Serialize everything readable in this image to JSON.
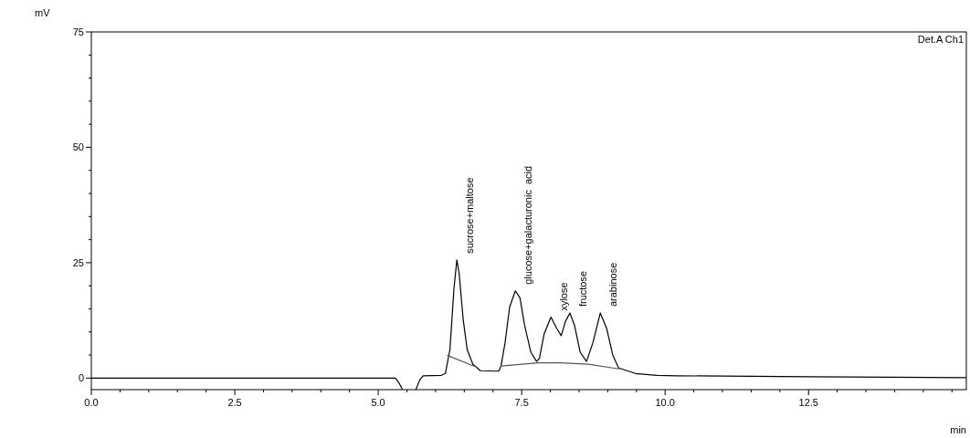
{
  "chart_data": {
    "type": "line",
    "xlabel": "min",
    "ylabel": "mV",
    "xlim": [
      0,
      15.25
    ],
    "ylim": [
      -2.5,
      75
    ],
    "xticks": [
      {
        "value": 0,
        "label": "0.0"
      },
      {
        "value": 0.5,
        "label": null
      },
      {
        "value": 1,
        "label": null
      },
      {
        "value": 1.5,
        "label": null
      },
      {
        "value": 2,
        "label": null
      },
      {
        "value": 2.5,
        "label": "2.5"
      },
      {
        "value": 3,
        "label": null
      },
      {
        "value": 3.5,
        "label": null
      },
      {
        "value": 4,
        "label": null
      },
      {
        "value": 4.5,
        "label": null
      },
      {
        "value": 5,
        "label": "5.0"
      },
      {
        "value": 5.5,
        "label": null
      },
      {
        "value": 6,
        "label": null
      },
      {
        "value": 6.5,
        "label": null
      },
      {
        "value": 7,
        "label": null
      },
      {
        "value": 7.5,
        "label": "7.5"
      },
      {
        "value": 8,
        "label": null
      },
      {
        "value": 8.5,
        "label": null
      },
      {
        "value": 9,
        "label": null
      },
      {
        "value": 9.5,
        "label": null
      },
      {
        "value": 10,
        "label": "10.0"
      },
      {
        "value": 10.5,
        "label": null
      },
      {
        "value": 11,
        "label": null
      },
      {
        "value": 11.5,
        "label": null
      },
      {
        "value": 12,
        "label": null
      },
      {
        "value": 12.5,
        "label": "12.5"
      },
      {
        "value": 13,
        "label": null
      },
      {
        "value": 13.5,
        "label": null
      },
      {
        "value": 14,
        "label": null
      },
      {
        "value": 14.5,
        "label": null
      },
      {
        "value": 15,
        "label": null
      }
    ],
    "yticks": [
      0,
      {
        "value": 5,
        "label": null
      },
      {
        "value": 10,
        "label": null
      },
      {
        "value": 15,
        "label": null
      },
      {
        "value": 20,
        "label": null
      },
      25,
      {
        "value": 30,
        "label": null
      },
      {
        "value": 35,
        "label": null
      },
      {
        "value": 40,
        "label": null
      },
      {
        "value": 45,
        "label": null
      },
      50,
      {
        "value": 55,
        "label": null
      },
      {
        "value": 60,
        "label": null
      },
      {
        "value": 65,
        "label": null
      },
      {
        "value": 70,
        "label": null
      },
      75
    ],
    "series": [
      {
        "color": "#000000",
        "x": [
          0,
          5.3,
          5.36,
          5.42
        ],
        "values": [
          0,
          0,
          -1,
          -2.4
        ]
      },
      {
        "color": "#000000",
        "x": [
          5.66,
          5.72,
          5.78,
          6.1,
          6.17,
          6.25,
          6.32,
          6.37,
          6.41,
          6.48,
          6.55,
          6.65,
          6.78,
          7.1,
          7.14,
          7.21,
          7.29,
          7.39,
          7.47,
          7.55,
          7.66,
          7.76,
          7.81,
          7.89,
          8.01,
          8.11,
          8.19,
          8.26,
          8.34,
          8.42,
          8.52,
          8.63,
          8.74,
          8.87,
          8.98,
          9.09,
          9.19,
          9.48,
          9.86,
          10.2,
          12.5,
          15.25
        ],
        "values": [
          -2.4,
          -0.5,
          0.5,
          0.6,
          1.0,
          6.2,
          19.4,
          25.6,
          22.7,
          12.8,
          6.2,
          3.0,
          1.6,
          1.5,
          2.6,
          7.6,
          15.4,
          18.9,
          17.4,
          11.5,
          5.6,
          3.6,
          4.3,
          9.5,
          13.2,
          10.8,
          9.2,
          12.2,
          14.1,
          11.5,
          5.6,
          3.6,
          7.6,
          14.1,
          10.8,
          4.9,
          2.2,
          1.0,
          0.6,
          0.5,
          0.3,
          0.1
        ]
      },
      {
        "color": "#555555",
        "x": [
          6.21,
          6.73
        ],
        "values": [
          4.9,
          2.3
        ]
      },
      {
        "color": "#555555",
        "x": [
          7.14,
          7.79,
          8.19,
          8.66,
          9.19
        ],
        "values": [
          2.6,
          3.3,
          3.3,
          3.0,
          2.0
        ]
      }
    ],
    "annotations": [
      {
        "text": "sucrose+maltose",
        "x": 6.37,
        "y": 25.6
      },
      {
        "text": "glucose+galacturonic  acid",
        "x": 7.39,
        "y": 18.9
      },
      {
        "text": "xylose",
        "x": 8.01,
        "y": 13.2
      },
      {
        "text": "fructose",
        "x": 8.34,
        "y": 14.1
      },
      {
        "text": "arabinose",
        "x": 8.87,
        "y": 14.1
      },
      "Det.A Ch1"
    ]
  }
}
